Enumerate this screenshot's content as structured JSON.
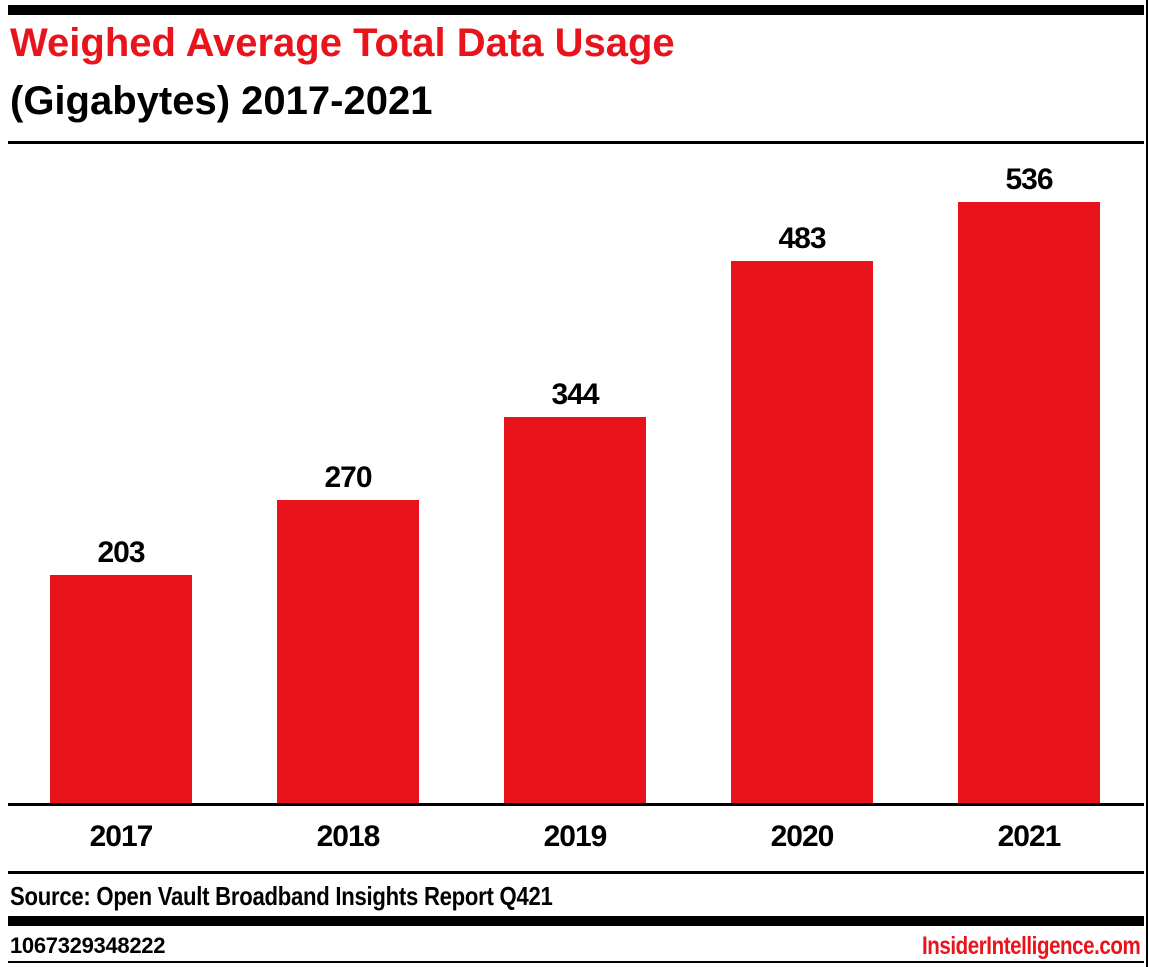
{
  "page": {
    "title_line1": "Weighed Average Total Data Usage",
    "title_line2": "(Gigabytes) 2017-2021",
    "source": "Source: Open Vault Broadband Insights Report Q421",
    "footer_id": "1067329348222",
    "footer_site": "InsiderIntelligence.com"
  },
  "colors": {
    "accent_red": "#e8131b",
    "bar_red": "#e8131b",
    "rule_black": "#000000",
    "background": "#ffffff"
  },
  "chart_data": {
    "type": "bar",
    "title": "Weighed Average Total Data Usage (Gigabytes) 2017-2021",
    "categories": [
      "2017",
      "2018",
      "2019",
      "2020",
      "2021"
    ],
    "values": [
      203,
      270,
      344,
      483,
      536
    ],
    "value_labels_position": "above bars",
    "bar_color": "#e8131b",
    "xlabel": "",
    "ylabel": "",
    "ylim": [
      0,
      600
    ],
    "grid": false,
    "legend": "none"
  }
}
